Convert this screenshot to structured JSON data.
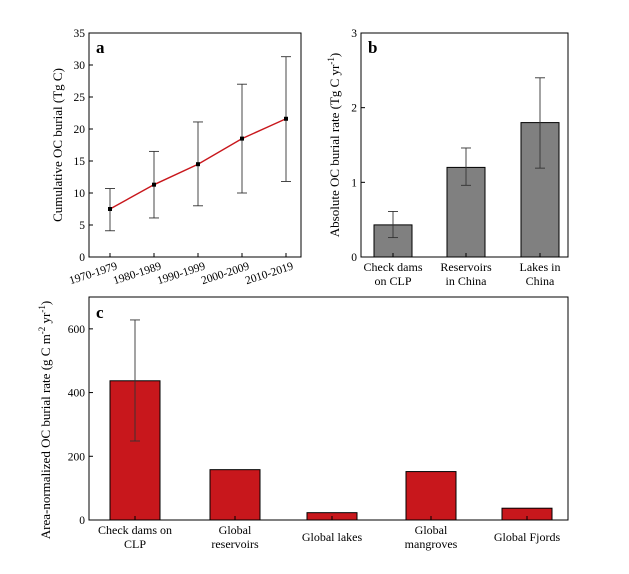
{
  "chart_data": [
    {
      "panel": "a",
      "type": "line",
      "categories": [
        "1970-1979",
        "1980-1989",
        "1990-1999",
        "2000-2009",
        "2010-2019"
      ],
      "values": [
        7.5,
        11.3,
        14.5,
        18.5,
        21.6
      ],
      "error_low": [
        4.1,
        6.1,
        8.0,
        10.0,
        11.8
      ],
      "error_high": [
        10.7,
        16.5,
        21.1,
        27.0,
        31.3
      ],
      "ylabel": "Cumulative OC burial (Tg C)",
      "ylim": [
        0,
        35
      ],
      "yticks": [
        0,
        5,
        10,
        15,
        20,
        25,
        30,
        35
      ],
      "line_color": "#c8171c",
      "marker_color": "#000000"
    },
    {
      "panel": "b",
      "type": "bar",
      "categories": [
        [
          "Check dams",
          "on CLP"
        ],
        [
          "Reservoirs",
          "in China"
        ],
        [
          "Lakes in",
          "China"
        ]
      ],
      "values": [
        0.43,
        1.2,
        1.8
      ],
      "error_low": [
        0.26,
        0.96,
        1.19
      ],
      "error_high": [
        0.61,
        1.46,
        2.4
      ],
      "ylabel": "Absolute OC burial rate (Tg C yr",
      "ylabel_sup": "-1",
      "ylabel_end": ")",
      "ylim": [
        0,
        3
      ],
      "yticks": [
        0,
        1,
        2,
        3
      ],
      "bar_color": "#808080"
    },
    {
      "panel": "c",
      "type": "bar",
      "categories": [
        [
          "Check dams on",
          "CLP"
        ],
        [
          "Global",
          "reservoirs"
        ],
        [
          "Global lakes"
        ],
        [
          "Global",
          "mangroves"
        ],
        [
          "Global Fjords"
        ]
      ],
      "values": [
        437,
        158,
        23,
        152,
        37
      ],
      "error_low": [
        248,
        null,
        null,
        null,
        null
      ],
      "error_high": [
        628,
        null,
        null,
        null,
        null
      ],
      "ylabel": "Area-normalized OC burial rate (g C m",
      "ylabel_sup1": "-2",
      "ylabel_mid": " yr",
      "ylabel_sup2": "-1",
      "ylabel_end": ")",
      "ylim": [
        0,
        700
      ],
      "yticks": [
        0,
        200,
        400,
        600
      ],
      "bar_color": "#c8171c"
    }
  ]
}
